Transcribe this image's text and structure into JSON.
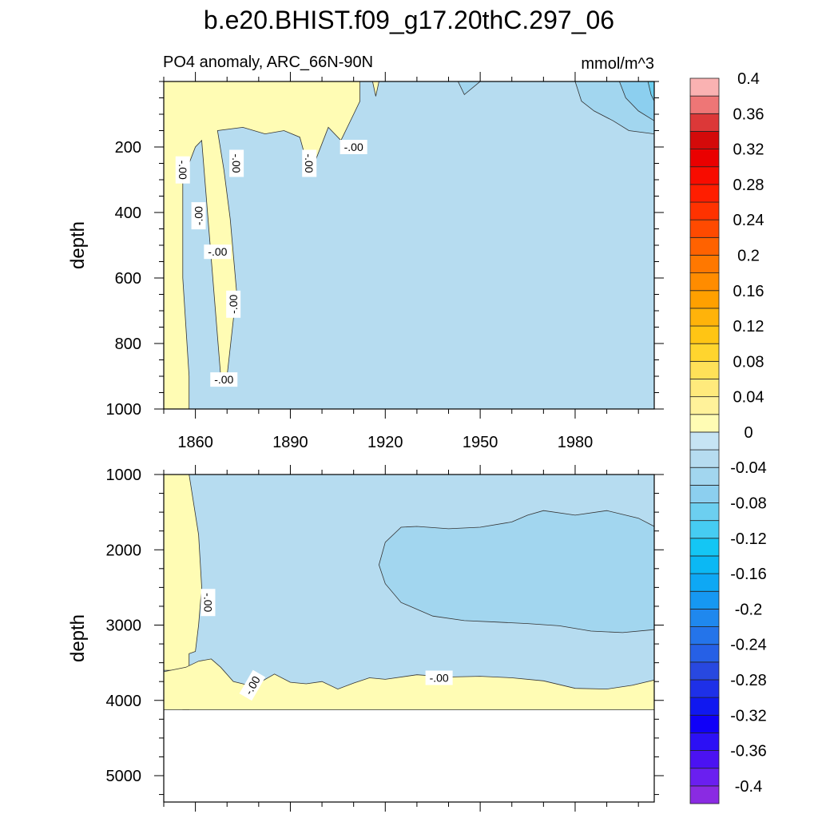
{
  "title": "b.e20.BHIST.f09_g17.20thC.297_06",
  "chart_data": {
    "type": "heatmap",
    "variable_label": "PO4 anomaly, ARC_66N-90N",
    "units": "mmol/m^3",
    "x_ticks": [
      1860,
      1890,
      1920,
      1950,
      1980
    ],
    "xlim": [
      1850,
      2005
    ],
    "contour_label": "-.00",
    "panels": [
      {
        "ylabel": "depth",
        "ylim": [
          0,
          1000
        ],
        "y_reversed": true,
        "y_ticks": [
          200,
          400,
          600,
          800,
          1000
        ],
        "background_level": -0.02,
        "regions": [
          {
            "level": 0.02,
            "points": [
              [
                1850,
                0
              ],
              [
                1850,
                1000
              ],
              [
                1858,
                1000
              ],
              [
                1858,
                900
              ],
              [
                1856,
                600
              ],
              [
                1856,
                300
              ],
              [
                1860,
                200
              ],
              [
                1862,
                180
              ],
              [
                1868,
                900
              ],
              [
                1870,
                900
              ],
              [
                1873,
                640
              ],
              [
                1871,
                420
              ],
              [
                1869,
                270
              ],
              [
                1867,
                150
              ],
              [
                1875,
                140
              ],
              [
                1882,
                160
              ],
              [
                1888,
                150
              ],
              [
                1893,
                170
              ],
              [
                1896,
                275
              ],
              [
                1898,
                240
              ],
              [
                1902,
                140
              ],
              [
                1906,
                180
              ],
              [
                1910,
                100
              ],
              [
                1912,
                60
              ],
              [
                1912,
                0
              ]
            ]
          },
          {
            "level": 0.02,
            "points": [
              [
                1916,
                0
              ],
              [
                1917,
                45
              ],
              [
                1918,
                0
              ]
            ]
          },
          {
            "level": -0.04,
            "points": [
              [
                1943,
                0
              ],
              [
                1945,
                40
              ],
              [
                1950,
                0
              ]
            ]
          },
          {
            "level": -0.04,
            "points": [
              [
                1980,
                0
              ],
              [
                1982,
                60
              ],
              [
                1986,
                90
              ],
              [
                1992,
                120
              ],
              [
                1997,
                150
              ],
              [
                2005,
                160
              ],
              [
                2005,
                0
              ]
            ]
          },
          {
            "level": -0.06,
            "points": [
              [
                1994,
                0
              ],
              [
                1996,
                50
              ],
              [
                2000,
                90
              ],
              [
                2005,
                120
              ],
              [
                2005,
                0
              ]
            ]
          },
          {
            "level": -0.08,
            "points": [
              [
                2003,
                0
              ],
              [
                2004,
                40
              ],
              [
                2005,
                60
              ],
              [
                2005,
                0
              ]
            ]
          }
        ],
        "labels": [
          {
            "x": 1856,
            "depth": 270,
            "angle": 90
          },
          {
            "x": 1861,
            "depth": 410,
            "angle": -90
          },
          {
            "x": 1867,
            "depth": 520,
            "angle": 0
          },
          {
            "x": 1872,
            "depth": 680,
            "angle": -90
          },
          {
            "x": 1869,
            "depth": 910,
            "angle": 0
          },
          {
            "x": 1873,
            "depth": 250,
            "angle": 90
          },
          {
            "x": 1896,
            "depth": 250,
            "angle": 90
          },
          {
            "x": 1910,
            "depth": 200,
            "angle": 0
          }
        ]
      },
      {
        "ylabel": "depth",
        "ylim": [
          1000,
          5350
        ],
        "y_reversed": true,
        "y_ticks": [
          1000,
          2000,
          3000,
          4000,
          5000
        ],
        "data_bottom": 4125,
        "background_level": -0.02,
        "regions": [
          {
            "level": 0.02,
            "points": [
              [
                1850,
                1000
              ],
              [
                1850,
                3600
              ],
              [
                1853,
                3600
              ],
              [
                1856,
                4125
              ],
              [
                1858,
                4125
              ],
              [
                1858,
                3380
              ],
              [
                1860,
                3350
              ],
              [
                1861,
                3000
              ],
              [
                1862,
                2500
              ],
              [
                1861,
                1800
              ],
              [
                1858,
                1000
              ]
            ]
          },
          {
            "level": 0.02,
            "points": [
              [
                1850,
                4125
              ],
              [
                1850,
                3620
              ],
              [
                1857,
                3560
              ],
              [
                1861,
                3480
              ],
              [
                1865,
                3450
              ],
              [
                1868,
                3560
              ],
              [
                1872,
                3750
              ],
              [
                1876,
                3790
              ],
              [
                1880,
                3770
              ],
              [
                1885,
                3650
              ],
              [
                1890,
                3760
              ],
              [
                1895,
                3780
              ],
              [
                1900,
                3750
              ],
              [
                1905,
                3850
              ],
              [
                1910,
                3770
              ],
              [
                1915,
                3700
              ],
              [
                1920,
                3720
              ],
              [
                1930,
                3660
              ],
              [
                1940,
                3690
              ],
              [
                1950,
                3680
              ],
              [
                1960,
                3700
              ],
              [
                1970,
                3740
              ],
              [
                1980,
                3840
              ],
              [
                1990,
                3850
              ],
              [
                1998,
                3800
              ],
              [
                2005,
                3730
              ],
              [
                2005,
                4125
              ]
            ]
          },
          {
            "level": -0.04,
            "points": [
              [
                1918,
                2200
              ],
              [
                1920,
                1900
              ],
              [
                1925,
                1700
              ],
              [
                1930,
                1690
              ],
              [
                1940,
                1720
              ],
              [
                1950,
                1700
              ],
              [
                1960,
                1630
              ],
              [
                1965,
                1540
              ],
              [
                1970,
                1480
              ],
              [
                1980,
                1540
              ],
              [
                1990,
                1480
              ],
              [
                2000,
                1580
              ],
              [
                2005,
                1690
              ],
              [
                2005,
                3060
              ],
              [
                1995,
                3100
              ],
              [
                1985,
                3080
              ],
              [
                1975,
                3010
              ],
              [
                1965,
                2980
              ],
              [
                1955,
                2960
              ],
              [
                1945,
                2940
              ],
              [
                1935,
                2880
              ],
              [
                1925,
                2700
              ],
              [
                1920,
                2450
              ]
            ]
          }
        ],
        "labels": [
          {
            "x": 1864,
            "depth": 2700,
            "angle": 90
          },
          {
            "x": 1878,
            "depth": 3800,
            "angle": -60
          },
          {
            "x": 1937,
            "depth": 3700,
            "angle": 0
          }
        ]
      }
    ],
    "colorbar": {
      "levels": [
        -0.4,
        -0.38,
        -0.36,
        -0.34,
        -0.32,
        -0.3,
        -0.28,
        -0.26,
        -0.24,
        -0.22,
        -0.2,
        -0.18,
        -0.16,
        -0.14,
        -0.12,
        -0.1,
        -0.08,
        -0.06,
        -0.04,
        -0.02,
        0,
        0.02,
        0.04,
        0.06,
        0.08,
        0.1,
        0.12,
        0.14,
        0.16,
        0.18,
        0.2,
        0.22,
        0.24,
        0.26,
        0.28,
        0.3,
        0.32,
        0.34,
        0.36,
        0.38,
        0.4
      ],
      "tick_labels": [
        "-0.4",
        "-0.36",
        "-0.32",
        "-0.28",
        "-0.24",
        "-0.2",
        "-0.16",
        "-0.12",
        "-0.08",
        "-0.04",
        "0",
        "0.04",
        "0.08",
        "0.12",
        "0.16",
        "0.2",
        "0.24",
        "0.28",
        "0.32",
        "0.36",
        "0.4"
      ],
      "colors": [
        "#8a2be2",
        "#6a1ff0",
        "#4b12f2",
        "#2c10f5",
        "#1000f8",
        "#1018f0",
        "#1e30e8",
        "#2848e0",
        "#2660e6",
        "#2474ea",
        "#1f88ee",
        "#1698f2",
        "#0ea8f4",
        "#0bb8f4",
        "#14c6f4",
        "#46ccf2",
        "#6ccff0",
        "#8ccfef",
        "#a2d6ef",
        "#b6dcf0",
        "#c6e4f4",
        "#fffcb4",
        "#fff29a",
        "#ffea7c",
        "#ffe158",
        "#ffd52e",
        "#ffc514",
        "#ffb30a",
        "#ffa000",
        "#ff8c00",
        "#ff7800",
        "#ff6200",
        "#ff4a00",
        "#ff3200",
        "#ff1e00",
        "#f80c00",
        "#ea0000",
        "#d40a0a",
        "#dc3838",
        "#ee7676",
        "#fab2b2"
      ]
    }
  }
}
